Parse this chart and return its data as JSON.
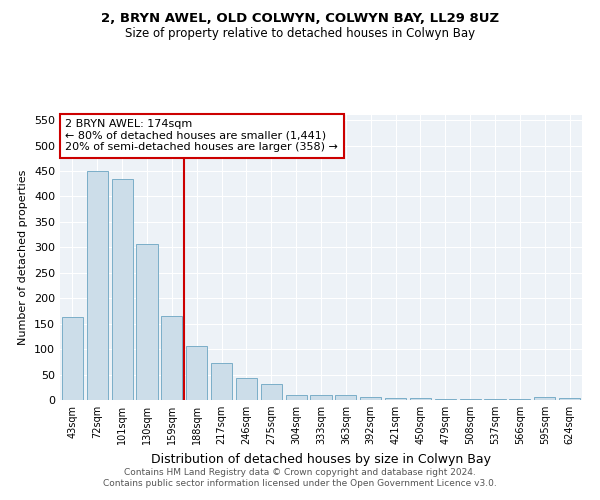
{
  "title1": "2, BRYN AWEL, OLD COLWYN, COLWYN BAY, LL29 8UZ",
  "title2": "Size of property relative to detached houses in Colwyn Bay",
  "xlabel": "Distribution of detached houses by size in Colwyn Bay",
  "ylabel": "Number of detached properties",
  "categories": [
    "43sqm",
    "72sqm",
    "101sqm",
    "130sqm",
    "159sqm",
    "188sqm",
    "217sqm",
    "246sqm",
    "275sqm",
    "304sqm",
    "333sqm",
    "363sqm",
    "392sqm",
    "421sqm",
    "450sqm",
    "479sqm",
    "508sqm",
    "537sqm",
    "566sqm",
    "595sqm",
    "624sqm"
  ],
  "values": [
    163,
    450,
    435,
    307,
    165,
    107,
    73,
    43,
    31,
    10,
    10,
    9,
    5,
    4,
    3,
    2,
    2,
    2,
    2,
    5,
    4
  ],
  "bar_color": "#ccdde9",
  "bar_edge_color": "#7aaec8",
  "vline_x_idx": 5,
  "vline_color": "#cc0000",
  "annotation_text": "2 BRYN AWEL: 174sqm\n← 80% of detached houses are smaller (1,441)\n20% of semi-detached houses are larger (358) →",
  "annotation_box_color": "#ffffff",
  "annotation_box_edge_color": "#cc0000",
  "ylim": [
    0,
    560
  ],
  "yticks": [
    0,
    50,
    100,
    150,
    200,
    250,
    300,
    350,
    400,
    450,
    500,
    550
  ],
  "footer": "Contains HM Land Registry data © Crown copyright and database right 2024.\nContains public sector information licensed under the Open Government Licence v3.0.",
  "bg_color": "#edf2f7",
  "grid_color": "#d0dae4"
}
